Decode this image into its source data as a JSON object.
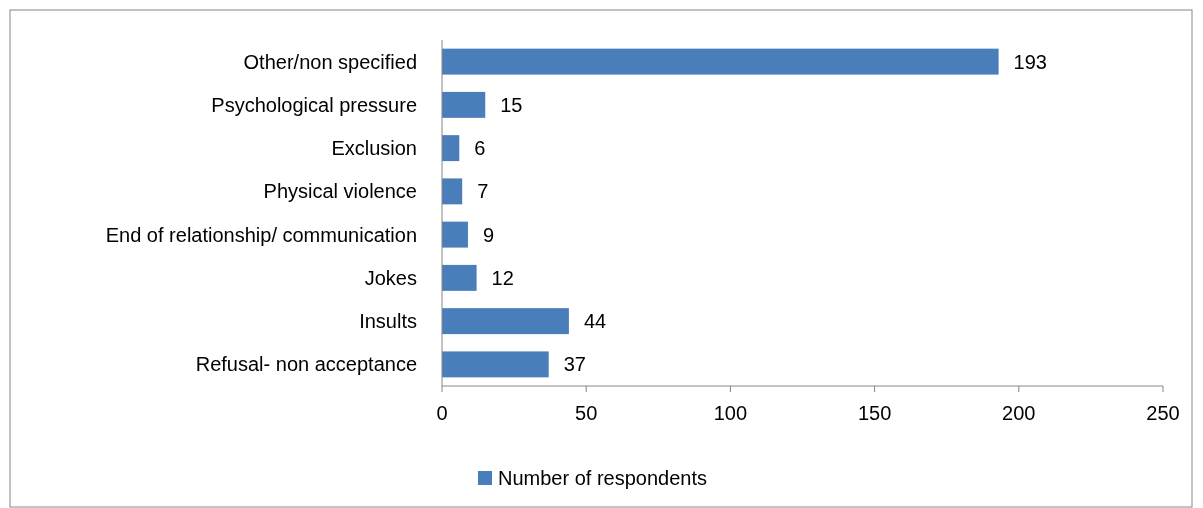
{
  "chart_data": {
    "type": "bar",
    "orientation": "horizontal",
    "categories": [
      "Other/non specified",
      "Psychological pressure",
      "Exclusion",
      "Physical violence",
      "End of relationship/ communication",
      "Jokes",
      "Insults",
      "Refusal- non acceptance"
    ],
    "series": [
      {
        "name": "Number of respondents",
        "color": "#4a7ebb",
        "values": [
          193,
          15,
          6,
          7,
          9,
          12,
          44,
          37
        ]
      }
    ],
    "xlim": [
      0,
      250
    ],
    "xticks": [
      0,
      50,
      100,
      150,
      200,
      250
    ],
    "grid": false,
    "legend": "bottom",
    "data_labels": true
  }
}
